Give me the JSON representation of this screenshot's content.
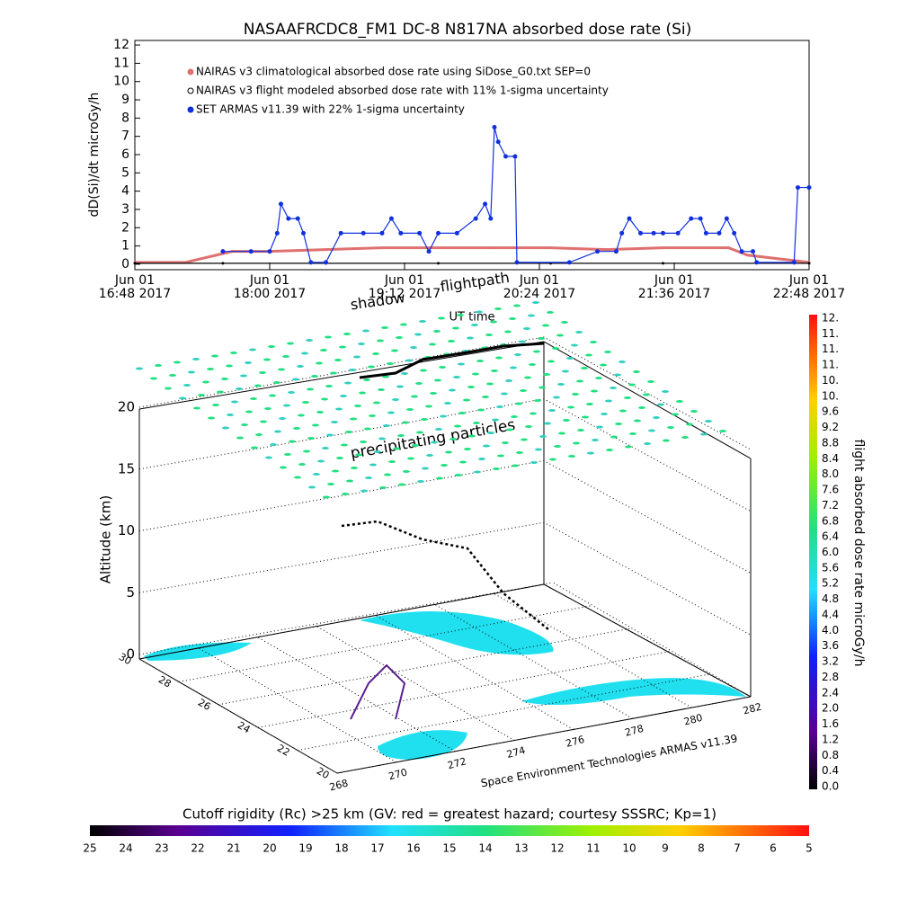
{
  "chart_data": [
    {
      "type": "line",
      "title": "NASAAFRCDC8_FM1 DC-8    N817NA absorbed dose rate (Si)",
      "y_label": "dD(Si)/dt microGy/h",
      "x_label": "UT time",
      "xlim": [
        "2017-06-01T16:48",
        "2017-06-01T22:48"
      ],
      "xticks": [
        {
          "value": "2017-06-01T16:48",
          "label": "Jun 01\n16:48 2017"
        },
        {
          "value": "2017-06-01T18:00",
          "label": "Jun 01\n18:00 2017"
        },
        {
          "value": "2017-06-01T19:12",
          "label": "Jun 01\n19:12 2017"
        },
        {
          "value": "2017-06-01T20:24",
          "label": "Jun 01\n20:24 2017"
        },
        {
          "value": "2017-06-01T21:36",
          "label": "Jun 01\n21:36 2017"
        },
        {
          "value": "2017-06-01T22:48",
          "label": "Jun 01\n22:48 2017"
        }
      ],
      "ylim": [
        -0.3,
        12.25
      ],
      "yticks": [
        0,
        1,
        2,
        3,
        4,
        5,
        6,
        7,
        8,
        9,
        10,
        11,
        12
      ],
      "series": [
        {
          "name": "NAIRAS v3 climatological absorbed dose rate using SiDose_G0.txt SEP=0",
          "color": "#e07070",
          "x": [
            "2017-06-01T16:48",
            "2017-06-01T17:15",
            "2017-06-01T17:40",
            "2017-06-01T18:00",
            "2017-06-01T18:30",
            "2017-06-01T19:00",
            "2017-06-01T19:30",
            "2017-06-01T20:00",
            "2017-06-01T20:30",
            "2017-06-01T21:00",
            "2017-06-01T21:30",
            "2017-06-01T22:05",
            "2017-06-01T22:15",
            "2017-06-01T22:48"
          ],
          "values": [
            0.1,
            0.1,
            0.7,
            0.7,
            0.8,
            0.9,
            0.9,
            0.9,
            0.9,
            0.8,
            0.9,
            0.9,
            0.5,
            0.1
          ]
        },
        {
          "name": "NAIRAS v3 flight modeled absorbed dose rate with 11% 1-sigma uncertainty",
          "color": "#000000",
          "x": [
            "2017-06-01T16:48",
            "2017-06-01T17:35",
            "2017-06-01T18:30",
            "2017-06-01T19:30",
            "2017-06-01T20:30",
            "2017-06-01T21:30",
            "2017-06-01T22:48"
          ],
          "values": [
            0.05,
            0.05,
            0.05,
            0.05,
            0.05,
            0.05,
            0.05
          ]
        },
        {
          "name": "SET ARMAS v11.39 with 22% 1-sigma uncertainty",
          "color": "#1030e0",
          "x": [
            "2017-06-01T17:35",
            "2017-06-01T17:50",
            "2017-06-01T18:00",
            "2017-06-01T18:04",
            "2017-06-01T18:06",
            "2017-06-01T18:10",
            "2017-06-01T18:15",
            "2017-06-01T18:18",
            "2017-06-01T18:22",
            "2017-06-01T18:30",
            "2017-06-01T18:38",
            "2017-06-01T18:50",
            "2017-06-01T19:00",
            "2017-06-01T19:05",
            "2017-06-01T19:10",
            "2017-06-01T19:20",
            "2017-06-01T19:25",
            "2017-06-01T19:30",
            "2017-06-01T19:40",
            "2017-06-01T19:50",
            "2017-06-01T19:55",
            "2017-06-01T19:58",
            "2017-06-01T20:00",
            "2017-06-01T20:02",
            "2017-06-01T20:06",
            "2017-06-01T20:11",
            "2017-06-01T20:12",
            "2017-06-01T20:40",
            "2017-06-01T20:55",
            "2017-06-01T21:05",
            "2017-06-01T21:08",
            "2017-06-01T21:12",
            "2017-06-01T21:18",
            "2017-06-01T21:25",
            "2017-06-01T21:30",
            "2017-06-01T21:38",
            "2017-06-01T21:45",
            "2017-06-01T21:50",
            "2017-06-01T21:53",
            "2017-06-01T22:00",
            "2017-06-01T22:04",
            "2017-06-01T22:08",
            "2017-06-01T22:12",
            "2017-06-01T22:18",
            "2017-06-01T22:20",
            "2017-06-01T22:40",
            "2017-06-01T22:42",
            "2017-06-01T22:48"
          ],
          "values": [
            0.7,
            0.7,
            0.7,
            1.7,
            3.3,
            2.5,
            2.5,
            1.7,
            0.1,
            0.1,
            1.7,
            1.7,
            1.7,
            2.5,
            1.7,
            1.7,
            0.7,
            1.7,
            1.7,
            2.5,
            3.3,
            2.5,
            7.5,
            6.7,
            5.9,
            5.9,
            0.1,
            0.1,
            0.7,
            0.7,
            1.7,
            2.5,
            1.7,
            1.7,
            1.7,
            1.7,
            2.5,
            2.5,
            1.7,
            1.7,
            2.5,
            1.7,
            0.7,
            0.7,
            0.1,
            0.1,
            4.2,
            4.2
          ]
        }
      ]
    },
    {
      "type": "3d",
      "z_label": "Altitude (km)",
      "zticks": [
        0,
        5,
        10,
        15,
        20
      ],
      "yticks": [
        30,
        28,
        26,
        24,
        22,
        20
      ],
      "xticks": [
        268,
        270,
        272,
        274,
        276,
        278,
        280,
        282
      ],
      "annotations": [
        "shadow",
        "flightpath",
        "precipitating particles",
        "Space Environment Technologies ARMAS v11.39"
      ]
    },
    {
      "type": "colorbar",
      "title": "flight absorbed dose rate microGy/h",
      "labels": [
        "0.0",
        "0.4",
        "0.8",
        "1.2",
        "1.6",
        "2.0",
        "2.4",
        "2.8",
        "3.2",
        "3.6",
        "4.0",
        "4.4",
        "4.8",
        "5.2",
        "5.6",
        "6.0",
        "6.4",
        "6.8",
        "7.2",
        "7.6",
        "8.0",
        "8.4",
        "8.8",
        "9.2",
        "9.6",
        "10.",
        "10.",
        "11.",
        "11.",
        "11.",
        "12."
      ]
    },
    {
      "type": "colorbar",
      "title": "Cutoff rigidity (Rc) >25 km (GV: red = greatest hazard; courtesy SSSRC; Kp=1)",
      "labels": [
        25,
        24,
        23,
        22,
        21,
        20,
        19,
        18,
        17,
        16,
        15,
        14,
        13,
        12,
        11,
        10,
        9,
        8,
        7,
        6,
        5
      ]
    }
  ]
}
